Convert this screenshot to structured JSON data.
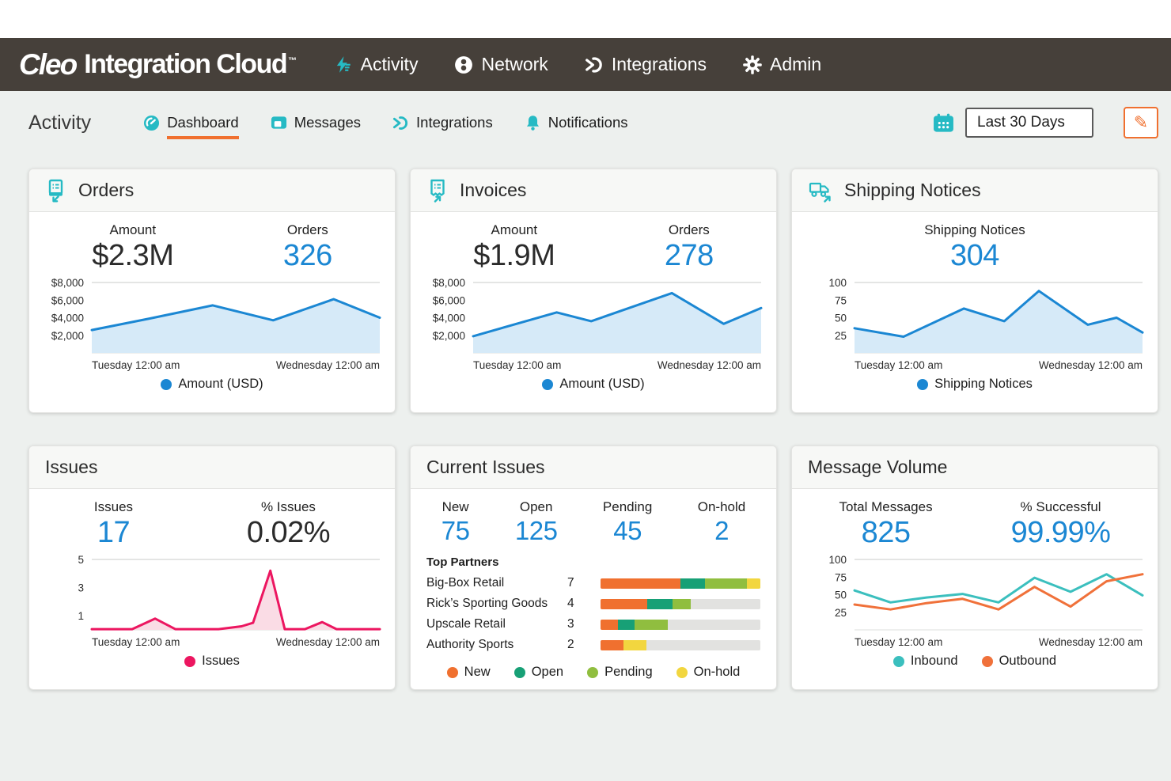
{
  "brand": {
    "name_italic": "Cleo",
    "name_rest": "Integration Cloud",
    "trademark": "™"
  },
  "topnav": {
    "items": [
      {
        "label": "Activity",
        "icon": "lightning-icon"
      },
      {
        "label": "Network",
        "icon": "network-icon"
      },
      {
        "label": "Integrations",
        "icon": "integrations-icon"
      },
      {
        "label": "Admin",
        "icon": "gear-icon"
      }
    ]
  },
  "subheader": {
    "title": "Activity",
    "tabs": [
      {
        "label": "Dashboard",
        "icon": "gauge-icon",
        "active": true
      },
      {
        "label": "Messages",
        "icon": "chat-icon",
        "active": false
      },
      {
        "label": "Integrations",
        "icon": "integrations-icon",
        "active": false
      },
      {
        "label": "Notifications",
        "icon": "bell-icon",
        "active": false
      }
    ],
    "date_range": {
      "value": "Last 30 Days",
      "icon": "calendar-icon"
    },
    "edit_button": {
      "icon": "pencil-icon"
    }
  },
  "colors": {
    "navbar_bg": "#46403A",
    "brand_teal": "#26BAC4",
    "stat_blue": "#1B87D3",
    "accent_orange": "#F0702F",
    "issues_pink": "#EC1660",
    "status_new": "#F0702F",
    "status_open": "#17A076",
    "status_pending": "#90BE3F",
    "status_onhold": "#F2D63F",
    "bar_track": "#E2E2E0"
  },
  "cards": {
    "orders": {
      "title": "Orders",
      "icon": "document-inbound-icon",
      "stats": [
        {
          "label": "Amount",
          "value": "$2.3M"
        },
        {
          "label": "Orders",
          "value": "326"
        }
      ],
      "chart": {
        "type": "area",
        "ymax": 8000,
        "yticks": [
          {
            "v": 8000,
            "label": "$8,000"
          },
          {
            "v": 6000,
            "label": "$6,000"
          },
          {
            "v": 4000,
            "label": "$4,000"
          },
          {
            "v": 2000,
            "label": "$2,000"
          }
        ],
        "x_labels": [
          "Tuesday 12:00 am",
          "Wednesday 12:00 am"
        ],
        "series": [
          {
            "name": "Amount (USD)",
            "color": "#1B87D3",
            "fill": "#D6EAF8",
            "x": [
              0,
              0.2,
              0.42,
              0.63,
              0.84,
              1
            ],
            "values": [
              2600,
              3900,
              5400,
              3700,
              6100,
              4000
            ]
          }
        ]
      }
    },
    "invoices": {
      "title": "Invoices",
      "icon": "receipt-outbound-icon",
      "stats": [
        {
          "label": "Amount",
          "value": "$1.9M"
        },
        {
          "label": "Orders",
          "value": "278"
        }
      ],
      "chart": {
        "type": "area",
        "ymax": 8000,
        "yticks": [
          {
            "v": 8000,
            "label": "$8,000"
          },
          {
            "v": 6000,
            "label": "$6,000"
          },
          {
            "v": 4000,
            "label": "$4,000"
          },
          {
            "v": 2000,
            "label": "$2,000"
          }
        ],
        "x_labels": [
          "Tuesday 12:00 am",
          "Wednesday 12:00 am"
        ],
        "series": [
          {
            "name": "Amount (USD)",
            "color": "#1B87D3",
            "fill": "#D6EAF8",
            "x": [
              0,
              0.29,
              0.41,
              0.69,
              0.87,
              1
            ],
            "values": [
              1900,
              4600,
              3600,
              6800,
              3300,
              5100
            ]
          }
        ]
      }
    },
    "shipping_notices": {
      "title": "Shipping Notices",
      "icon": "truck-outbound-icon",
      "stats": [
        {
          "label": "Shipping Notices",
          "value": "304"
        }
      ],
      "chart": {
        "type": "area",
        "ymax": 100,
        "yticks": [
          {
            "v": 100,
            "label": "100"
          },
          {
            "v": 75,
            "label": "75"
          },
          {
            "v": 50,
            "label": "50"
          },
          {
            "v": 25,
            "label": "25"
          }
        ],
        "x_labels": [
          "Tuesday 12:00 am",
          "Wednesday 12:00 am"
        ],
        "series": [
          {
            "name": "Shipping Notices",
            "color": "#1B87D3",
            "fill": "#D6EAF8",
            "x": [
              0,
              0.17,
              0.38,
              0.52,
              0.64,
              0.81,
              0.91,
              1
            ],
            "values": [
              35,
              23,
              63,
              45,
              88,
              40,
              50,
              29
            ]
          }
        ]
      }
    },
    "issues": {
      "title": "Issues",
      "stats": [
        {
          "label": "Issues",
          "value": "17"
        },
        {
          "label": "% Issues",
          "value": "0.02%"
        }
      ],
      "chart": {
        "type": "area",
        "ymax": 5,
        "yticks": [
          {
            "v": 5,
            "label": "5"
          },
          {
            "v": 3,
            "label": "3"
          },
          {
            "v": 1,
            "label": "1"
          }
        ],
        "x_labels": [
          "Tuesday 12:00 am",
          "Wednesday 12:00 am"
        ],
        "series": [
          {
            "name": "Issues",
            "color": "#EC1660",
            "fill": "#FADCE5",
            "x": [
              0,
              0.14,
              0.22,
              0.29,
              0.44,
              0.52,
              0.56,
              0.62,
              0.67,
              0.74,
              0.8,
              0.85,
              1
            ],
            "values": [
              0.05,
              0.05,
              0.8,
              0.05,
              0.05,
              0.25,
              0.5,
              4.2,
              0.05,
              0.05,
              0.55,
              0.05,
              0.05
            ]
          }
        ]
      }
    },
    "current_issues": {
      "title": "Current Issues",
      "stats": [
        {
          "label": "New",
          "value": "75"
        },
        {
          "label": "Open",
          "value": "125"
        },
        {
          "label": "Pending",
          "value": "45"
        },
        {
          "label": "On-hold",
          "value": "2"
        }
      ],
      "top_partners_label": "Top Partners",
      "partners": [
        {
          "name": "Big-Box Retail",
          "count": "7",
          "segments": [
            {
              "color": "#F0702F",
              "pct": 50
            },
            {
              "color": "#17A076",
              "pct": 15.5
            },
            {
              "color": "#90BE3F",
              "pct": 26
            },
            {
              "color": "#F2D63F",
              "pct": 8.5
            }
          ]
        },
        {
          "name": "Rick’s Sporting Goods",
          "count": "4",
          "segments": [
            {
              "color": "#F0702F",
              "pct": 29
            },
            {
              "color": "#17A076",
              "pct": 16
            },
            {
              "color": "#90BE3F",
              "pct": 11.5
            }
          ]
        },
        {
          "name": "Upscale Retail",
          "count": "3",
          "segments": [
            {
              "color": "#F0702F",
              "pct": 11
            },
            {
              "color": "#17A076",
              "pct": 10.5
            },
            {
              "color": "#90BE3F",
              "pct": 20.5
            }
          ]
        },
        {
          "name": "Authority Sports",
          "count": "2",
          "segments": [
            {
              "color": "#F0702F",
              "pct": 14.5
            },
            {
              "color": "#F2D63F",
              "pct": 14
            }
          ]
        }
      ],
      "legend": [
        {
          "label": "New",
          "color": "#F0702F"
        },
        {
          "label": "Open",
          "color": "#17A076"
        },
        {
          "label": "Pending",
          "color": "#90BE3F"
        },
        {
          "label": "On-hold",
          "color": "#F2D63F"
        }
      ]
    },
    "message_volume": {
      "title": "Message Volume",
      "stats": [
        {
          "label": "Total Messages",
          "value": "825"
        },
        {
          "label": "% Successful",
          "value": "99.99%"
        }
      ],
      "chart": {
        "type": "line",
        "ymax": 100,
        "yticks": [
          {
            "v": 100,
            "label": "100"
          },
          {
            "v": 75,
            "label": "75"
          },
          {
            "v": 50,
            "label": "50"
          },
          {
            "v": 25,
            "label": "25"
          }
        ],
        "x_labels": [
          "Tuesday 12:00 am",
          "Wednesday 12:00 am"
        ],
        "series": [
          {
            "name": "Inbound",
            "color": "#3BBFBE",
            "x": [
              0,
              0.125,
              0.25,
              0.375,
              0.5,
              0.625,
              0.75,
              0.875,
              1
            ],
            "values": [
              56,
              39,
              46,
              51,
              39,
              74,
              54,
              79,
              49
            ]
          },
          {
            "name": "Outbound",
            "color": "#F0713A",
            "x": [
              0,
              0.125,
              0.25,
              0.375,
              0.5,
              0.625,
              0.75,
              0.875,
              1
            ],
            "values": [
              36,
              29,
              38,
              44,
              29,
              61,
              33,
              69,
              79
            ]
          }
        ]
      }
    }
  }
}
